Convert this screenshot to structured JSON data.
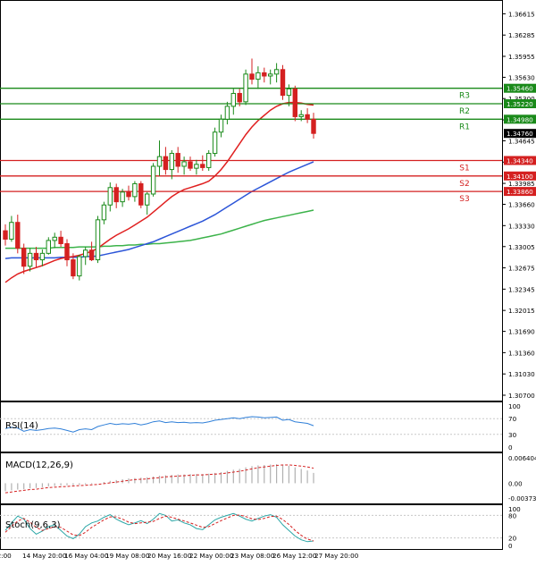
{
  "chart_data": [
    {
      "type": "candlestick",
      "title": "",
      "price_axis_ticks": [
        "1.36615",
        "1.36285",
        "1.35955",
        "1.35630",
        "1.35300",
        "1.34970",
        "1.34645",
        "1.34315",
        "1.33985",
        "1.33660",
        "1.33330",
        "1.33005",
        "1.32675",
        "1.32345",
        "1.32015",
        "1.31690",
        "1.31360",
        "1.31030",
        "1.30700"
      ],
      "ylim": [
        1.307,
        1.3669
      ],
      "time_labels": [
        "12:00",
        "14 May 20:00",
        "16 May 04:00",
        "19 May 08:00",
        "20 May 16:00",
        "22 May 00:00",
        "23 May 08:00",
        "26 May 12:00",
        "27 May 20:00"
      ],
      "levels": [
        {
          "name": "R3",
          "value": 1.3546,
          "label": "1.35460",
          "color": "#1a8a1a"
        },
        {
          "name": "R2",
          "value": 1.3522,
          "label": "1.35220",
          "color": "#1a8a1a"
        },
        {
          "name": "R1",
          "value": 1.3498,
          "label": "1.34980",
          "color": "#1a8a1a"
        },
        {
          "name": "S1",
          "value": 1.3434,
          "label": "1.34340",
          "color": "#d42020"
        },
        {
          "name": "S2",
          "value": 1.341,
          "label": "1.34100",
          "color": "#d42020"
        },
        {
          "name": "S3",
          "value": 1.3386,
          "label": "1.33860",
          "color": "#d42020"
        }
      ],
      "current_price": {
        "value": 1.3476,
        "label": "1.34760"
      },
      "candles": [
        [
          1.3325,
          1.3335,
          1.3302,
          1.3312
        ],
        [
          1.3312,
          1.3348,
          1.3308,
          1.3338
        ],
        [
          1.3338,
          1.335,
          1.329,
          1.3298
        ],
        [
          1.3298,
          1.3305,
          1.3258,
          1.327
        ],
        [
          1.327,
          1.3298,
          1.3262,
          1.329
        ],
        [
          1.329,
          1.33,
          1.3268,
          1.328
        ],
        [
          1.328,
          1.3296,
          1.327,
          1.329
        ],
        [
          1.329,
          1.3315,
          1.3288,
          1.331
        ],
        [
          1.331,
          1.3322,
          1.3298,
          1.3315
        ],
        [
          1.3315,
          1.3325,
          1.33,
          1.3305
        ],
        [
          1.3305,
          1.3312,
          1.327,
          1.328
        ],
        [
          1.328,
          1.329,
          1.325,
          1.3255
        ],
        [
          1.3255,
          1.3288,
          1.3248,
          1.3285
        ],
        [
          1.3285,
          1.33,
          1.3272,
          1.3295
        ],
        [
          1.3295,
          1.3308,
          1.3278,
          1.328
        ],
        [
          1.328,
          1.3348,
          1.3275,
          1.3342
        ],
        [
          1.3342,
          1.337,
          1.3335,
          1.3365
        ],
        [
          1.3365,
          1.34,
          1.3355,
          1.3392
        ],
        [
          1.3392,
          1.3398,
          1.336,
          1.337
        ],
        [
          1.337,
          1.339,
          1.3362,
          1.3385
        ],
        [
          1.3385,
          1.3395,
          1.3372,
          1.3378
        ],
        [
          1.3378,
          1.3402,
          1.337,
          1.3398
        ],
        [
          1.3398,
          1.3402,
          1.336,
          1.3365
        ],
        [
          1.3365,
          1.3385,
          1.335,
          1.3382
        ],
        [
          1.3382,
          1.343,
          1.3378,
          1.3425
        ],
        [
          1.3425,
          1.3465,
          1.341,
          1.344
        ],
        [
          1.344,
          1.3455,
          1.3412,
          1.342
        ],
        [
          1.342,
          1.345,
          1.3405,
          1.3445
        ],
        [
          1.3445,
          1.3455,
          1.3415,
          1.3425
        ],
        [
          1.3425,
          1.344,
          1.3412,
          1.3432
        ],
        [
          1.3432,
          1.344,
          1.3418,
          1.3422
        ],
        [
          1.3422,
          1.3435,
          1.3412,
          1.3428
        ],
        [
          1.3428,
          1.3442,
          1.3418,
          1.3423
        ],
        [
          1.3423,
          1.345,
          1.3418,
          1.3445
        ],
        [
          1.3445,
          1.3485,
          1.344,
          1.3478
        ],
        [
          1.3478,
          1.3505,
          1.347,
          1.3498
        ],
        [
          1.3498,
          1.3525,
          1.349,
          1.3518
        ],
        [
          1.3518,
          1.3545,
          1.3505,
          1.3538
        ],
        [
          1.3538,
          1.3545,
          1.3518,
          1.3525
        ],
        [
          1.3525,
          1.3575,
          1.352,
          1.3568
        ],
        [
          1.3568,
          1.3592,
          1.3552,
          1.356
        ],
        [
          1.356,
          1.358,
          1.3545,
          1.357
        ],
        [
          1.357,
          1.3578,
          1.3555,
          1.3565
        ],
        [
          1.3565,
          1.3575,
          1.3552,
          1.3568
        ],
        [
          1.3568,
          1.3585,
          1.3555,
          1.3575
        ],
        [
          1.3575,
          1.3582,
          1.3528,
          1.3535
        ],
        [
          1.3535,
          1.3552,
          1.3518,
          1.3545
        ],
        [
          1.3545,
          1.355,
          1.3495,
          1.3502
        ],
        [
          1.3502,
          1.3512,
          1.3495,
          1.3505
        ],
        [
          1.3505,
          1.3515,
          1.3492,
          1.3498
        ],
        [
          1.3498,
          1.3508,
          1.3468,
          1.3476
        ]
      ],
      "ma_red": [
        1.3245,
        1.3252,
        1.3258,
        1.3262,
        1.3265,
        1.3268,
        1.3271,
        1.3275,
        1.3279,
        1.3282,
        1.3284,
        1.3285,
        1.3287,
        1.329,
        1.3293,
        1.3298,
        1.3305,
        1.3312,
        1.3318,
        1.3323,
        1.3328,
        1.3334,
        1.334,
        1.3346,
        1.3354,
        1.3362,
        1.337,
        1.3378,
        1.3384,
        1.3389,
        1.3392,
        1.3395,
        1.3398,
        1.3402,
        1.341,
        1.342,
        1.3432,
        1.3446,
        1.346,
        1.3474,
        1.3486,
        1.3496,
        1.3504,
        1.3512,
        1.3518,
        1.3522,
        1.3524,
        1.3524,
        1.3523,
        1.3521,
        1.352
      ],
      "ma_blue": [
        1.3282,
        1.3283,
        1.3283,
        1.3283,
        1.3283,
        1.3283,
        1.3283,
        1.3283,
        1.3283,
        1.3284,
        1.3284,
        1.3284,
        1.3284,
        1.3285,
        1.3285,
        1.3286,
        1.3288,
        1.329,
        1.3292,
        1.3294,
        1.3296,
        1.3299,
        1.3302,
        1.3305,
        1.3308,
        1.3312,
        1.3316,
        1.332,
        1.3324,
        1.3328,
        1.3332,
        1.3336,
        1.334,
        1.3345,
        1.335,
        1.3356,
        1.3362,
        1.3368,
        1.3374,
        1.338,
        1.3386,
        1.3391,
        1.3396,
        1.3401,
        1.3406,
        1.3411,
        1.3416,
        1.342,
        1.3424,
        1.3428,
        1.3432
      ],
      "ma_green": [
        1.3298,
        1.3298,
        1.3298,
        1.3298,
        1.3298,
        1.3298,
        1.3298,
        1.3298,
        1.3299,
        1.3299,
        1.3299,
        1.3299,
        1.33,
        1.33,
        1.33,
        1.33,
        1.3301,
        1.3301,
        1.3302,
        1.3302,
        1.3303,
        1.3303,
        1.3304,
        1.3304,
        1.3305,
        1.3305,
        1.3306,
        1.3307,
        1.3308,
        1.3309,
        1.331,
        1.3312,
        1.3314,
        1.3316,
        1.3318,
        1.332,
        1.3323,
        1.3326,
        1.3329,
        1.3332,
        1.3335,
        1.3338,
        1.3341,
        1.3343,
        1.3345,
        1.3347,
        1.3349,
        1.3351,
        1.3353,
        1.3355,
        1.3357
      ],
      "candle_colors": {
        "up": "#1a8a1a",
        "down": "#d42020"
      }
    },
    {
      "type": "line",
      "label": "RSI(14)",
      "ticks": [
        "70",
        "30"
      ],
      "ylim": [
        0,
        100
      ],
      "values": [
        45,
        48,
        46,
        38,
        42,
        40,
        42,
        45,
        46,
        44,
        40,
        36,
        42,
        44,
        42,
        50,
        54,
        58,
        55,
        57,
        56,
        58,
        54,
        57,
        62,
        64,
        60,
        62,
        60,
        61,
        59,
        60,
        59,
        62,
        66,
        68,
        70,
        72,
        70,
        73,
        75,
        74,
        72,
        73,
        74,
        66,
        68,
        62,
        60,
        58,
        52
      ],
      "color": "#2f7fd8"
    },
    {
      "type": "bar",
      "label": "MACD(12,26,9)",
      "ticks": [
        "0.006404",
        "0.00",
        "-0.003731"
      ],
      "ylim": [
        -0.003731,
        0.006404
      ],
      "values": [
        -0.002,
        -0.0018,
        -0.0016,
        -0.0015,
        -0.0013,
        -0.0012,
        -0.001,
        -0.0008,
        -0.0007,
        -0.0006,
        -0.0005,
        -0.0005,
        -0.0004,
        -0.0003,
        -0.0002,
        0.0,
        0.0003,
        0.0006,
        0.0008,
        0.001,
        0.0012,
        0.0013,
        0.0014,
        0.0015,
        0.0017,
        0.0019,
        0.002,
        0.0021,
        0.0022,
        0.0022,
        0.0023,
        0.0023,
        0.0023,
        0.0024,
        0.0026,
        0.0028,
        0.0031,
        0.0034,
        0.0036,
        0.004,
        0.0043,
        0.0045,
        0.0046,
        0.0047,
        0.0048,
        0.0046,
        0.0044,
        0.004,
        0.0036,
        0.0032,
        0.0026
      ],
      "signal": [
        -0.0024,
        -0.0022,
        -0.002,
        -0.0018,
        -0.0016,
        -0.0015,
        -0.0013,
        -0.0011,
        -0.001,
        -0.0009,
        -0.0008,
        -0.0007,
        -0.0006,
        -0.0005,
        -0.0004,
        -0.0003,
        -0.0001,
        0.0001,
        0.0003,
        0.0005,
        0.0007,
        0.0009,
        0.001,
        0.0011,
        0.0013,
        0.0014,
        0.0016,
        0.0017,
        0.0018,
        0.0019,
        0.002,
        0.0021,
        0.0021,
        0.0022,
        0.0023,
        0.0024,
        0.0026,
        0.0028,
        0.003,
        0.0033,
        0.0036,
        0.0039,
        0.0041,
        0.0043,
        0.0045,
        0.0046,
        0.0046,
        0.0045,
        0.0043,
        0.0041,
        0.0038
      ],
      "bar_color": "#b0b0b0",
      "signal_color": "#d42020"
    },
    {
      "type": "line",
      "label": "Stoch(9,6,3)",
      "ticks": [
        "80",
        "20"
      ],
      "ylim": [
        0,
        100
      ],
      "main": [
        40,
        60,
        78,
        70,
        45,
        30,
        38,
        50,
        55,
        40,
        25,
        18,
        30,
        50,
        60,
        65,
        75,
        82,
        70,
        62,
        55,
        60,
        66,
        58,
        70,
        85,
        80,
        65,
        68,
        60,
        55,
        45,
        42,
        55,
        68,
        75,
        80,
        85,
        78,
        70,
        65,
        72,
        78,
        82,
        75,
        55,
        40,
        25,
        15,
        10,
        12
      ],
      "signal": [
        35,
        50,
        65,
        72,
        62,
        48,
        40,
        45,
        50,
        48,
        38,
        28,
        26,
        35,
        48,
        58,
        68,
        76,
        76,
        70,
        62,
        58,
        60,
        62,
        64,
        72,
        78,
        75,
        70,
        65,
        60,
        54,
        48,
        50,
        58,
        66,
        73,
        80,
        81,
        77,
        71,
        69,
        72,
        77,
        78,
        69,
        56,
        40,
        27,
        17,
        12
      ],
      "main_color": "#2aa6a6",
      "signal_color": "#d42020"
    }
  ]
}
